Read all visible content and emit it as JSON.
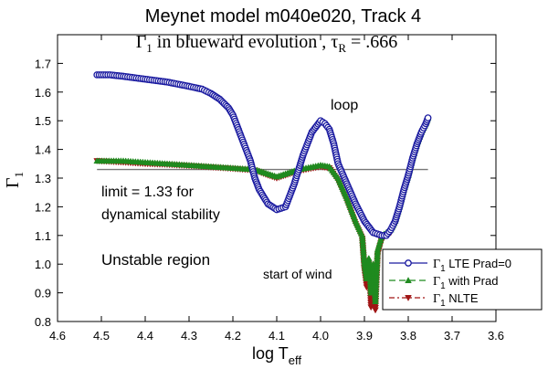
{
  "chart_data": {
    "type": "line",
    "title": "Meynet model m040e020, Track 4",
    "subtitle": {
      "gamma": "Γ",
      "sub1": "1",
      "text": " in blueward evolution , ",
      "tau": "τ",
      "subR": "R",
      "eq": " = .666"
    },
    "xlabel": {
      "main": "log T",
      "sub": "eff"
    },
    "ylabel": {
      "main": "Γ",
      "sub": "1"
    },
    "xlim": [
      4.6,
      3.6
    ],
    "ylim": [
      0.8,
      1.8
    ],
    "x_ticks": [
      "4.6",
      "4.5",
      "4.4",
      "4.3",
      "4.2",
      "4.1",
      "4.0",
      "3.9",
      "3.8",
      "3.7",
      "3.6"
    ],
    "y_ticks": [
      "0.8",
      "0.9",
      "1.0",
      "1.1",
      "1.2",
      "1.3",
      "1.4",
      "1.5",
      "1.6",
      "1.7"
    ],
    "grid": false,
    "reference_line": {
      "y": 1.33,
      "color": "#777777"
    },
    "annotations": {
      "loop": "loop",
      "limit1": "limit = 1.33 for",
      "limit2": "dynamical stability",
      "unstable": "Unstable region",
      "wind": "start of wind"
    },
    "legend": {
      "position": "bottom-right",
      "entries": [
        {
          "gamma": "Γ",
          "sub": "1",
          "label": "  LTE Prad=0",
          "color": "#1a1aa0",
          "marker": "circle",
          "dash": "solid"
        },
        {
          "gamma": "Γ",
          "sub": "1",
          "label": " with Prad",
          "color": "#1f8a1f",
          "marker": "triangle-up",
          "dash": "dash"
        },
        {
          "gamma": "Γ",
          "sub": "1",
          "label": " NLTE",
          "color": "#a01515",
          "marker": "triangle-down",
          "dash": "dashdot"
        }
      ]
    },
    "series": [
      {
        "name": "Γ1 LTE Prad=0",
        "color": "#1a1aa0",
        "x": [
          4.51,
          4.48,
          4.45,
          4.4,
          4.35,
          4.3,
          4.27,
          4.25,
          4.23,
          4.21,
          4.2,
          4.18,
          4.16,
          4.15,
          4.14,
          4.12,
          4.1,
          4.08,
          4.06,
          4.04,
          4.02,
          4.0,
          3.99,
          3.98,
          3.97,
          3.96,
          3.94,
          3.92,
          3.9,
          3.88,
          3.86,
          3.85,
          3.84,
          3.83,
          3.82,
          3.81,
          3.8,
          3.79,
          3.78,
          3.77,
          3.76,
          3.755
        ],
        "y": [
          1.66,
          1.66,
          1.655,
          1.645,
          1.635,
          1.62,
          1.61,
          1.595,
          1.575,
          1.545,
          1.52,
          1.44,
          1.36,
          1.3,
          1.26,
          1.21,
          1.19,
          1.2,
          1.28,
          1.38,
          1.46,
          1.5,
          1.49,
          1.47,
          1.42,
          1.35,
          1.28,
          1.21,
          1.15,
          1.11,
          1.1,
          1.1,
          1.12,
          1.15,
          1.2,
          1.26,
          1.31,
          1.37,
          1.42,
          1.46,
          1.49,
          1.51
        ]
      },
      {
        "name": "Γ1 with Prad",
        "color": "#1f8a1f",
        "x": [
          4.51,
          4.45,
          4.4,
          4.35,
          4.3,
          4.25,
          4.2,
          4.15,
          4.12,
          4.1,
          4.08,
          4.05,
          4.0,
          3.98,
          3.96,
          3.94,
          3.92,
          3.905,
          3.9,
          3.895,
          3.89,
          3.885,
          3.88,
          3.875,
          3.87,
          3.86,
          3.85,
          3.84,
          3.83,
          3.82,
          3.81,
          3.8,
          3.79,
          3.78,
          3.77,
          3.76,
          3.755
        ],
        "y": [
          1.36,
          1.36,
          1.355,
          1.35,
          1.345,
          1.34,
          1.335,
          1.33,
          1.315,
          1.305,
          1.315,
          1.33,
          1.345,
          1.34,
          1.3,
          1.23,
          1.15,
          1.1,
          1.0,
          0.95,
          1.02,
          0.9,
          1.0,
          0.87,
          1.05,
          1.1,
          1.11,
          1.12,
          1.15,
          1.2,
          1.26,
          1.31,
          1.37,
          1.42,
          1.46,
          1.49,
          1.51
        ]
      },
      {
        "name": "Γ1 NLTE",
        "color": "#a01515",
        "x": [
          4.51,
          4.45,
          4.4,
          4.35,
          4.3,
          4.25,
          4.2,
          4.15,
          4.12,
          4.1,
          4.08,
          4.05,
          4.0,
          3.98,
          3.96,
          3.94,
          3.92,
          3.905,
          3.9,
          3.895,
          3.89,
          3.885,
          3.88,
          3.875,
          3.87,
          3.86,
          3.85,
          3.84,
          3.83,
          3.82,
          3.81,
          3.8,
          3.79,
          3.78,
          3.77,
          3.76,
          3.755
        ],
        "y": [
          1.36,
          1.355,
          1.35,
          1.347,
          1.343,
          1.338,
          1.333,
          1.327,
          1.31,
          1.3,
          1.31,
          1.325,
          1.34,
          1.335,
          1.29,
          1.22,
          1.14,
          1.09,
          0.98,
          0.92,
          1.0,
          0.85,
          0.97,
          0.84,
          1.03,
          1.09,
          1.1,
          1.11,
          1.14,
          1.19,
          1.25,
          1.3,
          1.36,
          1.41,
          1.45,
          1.48,
          1.5
        ]
      }
    ]
  }
}
